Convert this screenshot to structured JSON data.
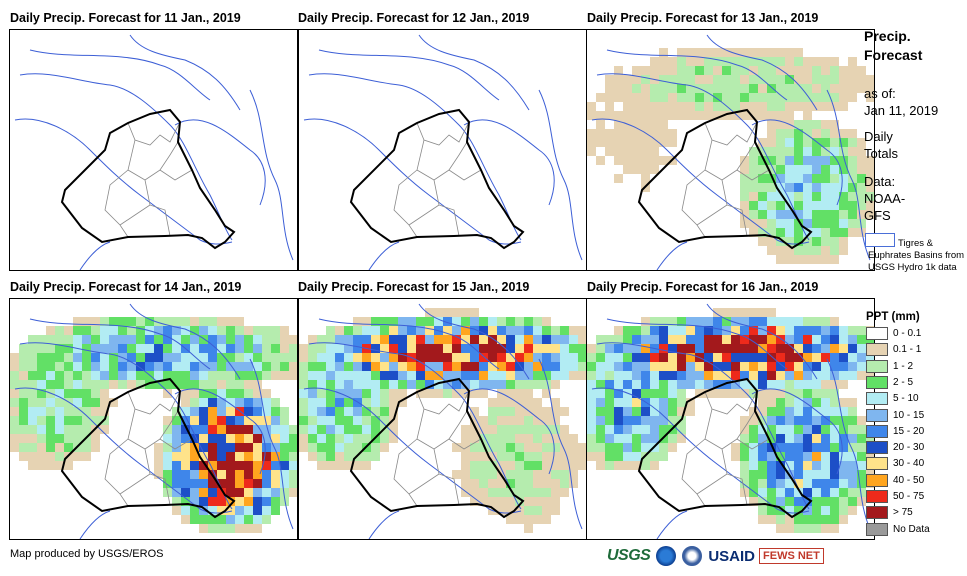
{
  "panels": [
    {
      "title": "Daily Precip. Forecast for 11 Jan., 2019",
      "day": 11
    },
    {
      "title": "Daily Precip. Forecast for 12 Jan., 2019",
      "day": 12
    },
    {
      "title": "Daily Precip. Forecast for 13 Jan., 2019",
      "day": 13
    },
    {
      "title": "Daily Precip. Forecast for 14 Jan., 2019",
      "day": 14
    },
    {
      "title": "Daily Precip. Forecast for 15 Jan., 2019",
      "day": 15
    },
    {
      "title": "Daily Precip. Forecast for 16 Jan., 2019",
      "day": 16
    }
  ],
  "sidebar": {
    "title_line1": "Precip.",
    "title_line2": "Forecast",
    "asof_label": "as of:",
    "asof_date": "Jan 11, 2019",
    "daily_line1": "Daily",
    "daily_line2": "Totals",
    "data_label": "Data:",
    "data_line2": "NOAA-",
    "data_line3": "GFS",
    "basin_text": "Tigres & Euphrates Basins from USGS Hydro 1k data"
  },
  "legend": {
    "title": "PPT (mm)",
    "items": [
      {
        "label": "0 - 0.1",
        "color": "#ffffff"
      },
      {
        "label": "0.1 - 1",
        "color": "#e6d3b3"
      },
      {
        "label": "1 - 2",
        "color": "#b5ecae"
      },
      {
        "label": "2 - 5",
        "color": "#62e066"
      },
      {
        "label": "5 - 10",
        "color": "#b2ecf3"
      },
      {
        "label": "10 - 15",
        "color": "#7fb6ef"
      },
      {
        "label": "15 - 20",
        "color": "#3f86ea"
      },
      {
        "label": "20 - 30",
        "color": "#1d4fc7"
      },
      {
        "label": "30 - 40",
        "color": "#ffe38a"
      },
      {
        "label": "40 - 50",
        "color": "#ffa51f"
      },
      {
        "label": "50 - 75",
        "color": "#ee2a1b"
      },
      {
        "label": "> 75",
        "color": "#a3191c"
      },
      {
        "label": "No Data",
        "color": "#9a9a9a"
      }
    ]
  },
  "footer": {
    "credit": "Map produced by USGS/EROS"
  },
  "logos": {
    "usgs": "USGS",
    "usaid": "USAID",
    "fews": "FEWS NET"
  },
  "precip_intensity": {
    "11": {
      "north": 0,
      "southeast": 0,
      "west": 0
    },
    "12": {
      "north": 0,
      "southeast": 0,
      "west": 0
    },
    "13": {
      "north": 2,
      "southeast": 4,
      "west": 1
    },
    "14": {
      "north": 5,
      "southeast": 10,
      "west": 3
    },
    "15": {
      "north": 9,
      "southeast": 2,
      "west": 4
    },
    "16": {
      "north": 10,
      "southeast": 6,
      "west": 5
    }
  }
}
